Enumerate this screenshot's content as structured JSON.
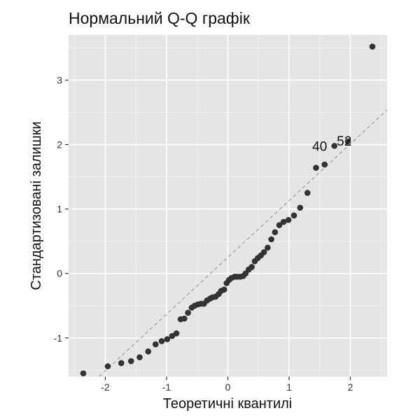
{
  "chart_data": {
    "type": "scatter",
    "title": "Нормальний Q-Q графік",
    "xlabel": "Теоретичні квантилі",
    "ylabel": "Стандартизовані залишки",
    "xlim": [
      -2.6,
      2.6
    ],
    "ylim": [
      -1.6,
      3.7
    ],
    "x_ticks": [
      -2,
      -1,
      0,
      1,
      2
    ],
    "y_ticks": [
      -1,
      0,
      1,
      2,
      3
    ],
    "grid": true,
    "reference_line": {
      "slope": 0.88,
      "intercept": 0.25,
      "style": "dashed"
    },
    "point_labels": [
      {
        "text": "40",
        "x": 1.5,
        "y": 1.98
      },
      {
        "text": "52",
        "x": 1.9,
        "y": 2.06
      }
    ],
    "points": [
      [
        -2.36,
        -1.55
      ],
      [
        -1.96,
        -1.44
      ],
      [
        -1.74,
        -1.39
      ],
      [
        -1.58,
        -1.36
      ],
      [
        -1.44,
        -1.3
      ],
      [
        -1.3,
        -1.21
      ],
      [
        -1.18,
        -1.1
      ],
      [
        -1.08,
        -1.05
      ],
      [
        -0.99,
        -1.02
      ],
      [
        -0.91,
        -0.97
      ],
      [
        -0.84,
        -0.93
      ],
      [
        -0.77,
        -0.71
      ],
      [
        -0.71,
        -0.7
      ],
      [
        -0.65,
        -0.61
      ],
      [
        -0.59,
        -0.53
      ],
      [
        -0.54,
        -0.5
      ],
      [
        -0.49,
        -0.48
      ],
      [
        -0.44,
        -0.47
      ],
      [
        -0.39,
        -0.47
      ],
      [
        -0.34,
        -0.42
      ],
      [
        -0.29,
        -0.39
      ],
      [
        -0.25,
        -0.37
      ],
      [
        -0.2,
        -0.36
      ],
      [
        -0.15,
        -0.32
      ],
      [
        -0.11,
        -0.27
      ],
      [
        -0.06,
        -0.25
      ],
      [
        -0.02,
        -0.15
      ],
      [
        0.02,
        -0.1
      ],
      [
        0.06,
        -0.07
      ],
      [
        0.11,
        -0.05
      ],
      [
        0.15,
        -0.05
      ],
      [
        0.2,
        -0.05
      ],
      [
        0.25,
        -0.04
      ],
      [
        0.29,
        0.0
      ],
      [
        0.34,
        0.06
      ],
      [
        0.39,
        0.1
      ],
      [
        0.44,
        0.19
      ],
      [
        0.49,
        0.24
      ],
      [
        0.54,
        0.28
      ],
      [
        0.59,
        0.33
      ],
      [
        0.65,
        0.4
      ],
      [
        0.71,
        0.53
      ],
      [
        0.77,
        0.64
      ],
      [
        0.84,
        0.75
      ],
      [
        0.91,
        0.8
      ],
      [
        0.99,
        0.83
      ],
      [
        1.08,
        0.9
      ],
      [
        1.18,
        1.02
      ],
      [
        1.3,
        1.25
      ],
      [
        1.44,
        1.64
      ],
      [
        1.58,
        1.69
      ],
      [
        1.74,
        1.98
      ],
      [
        1.96,
        2.05
      ],
      [
        2.36,
        3.52
      ]
    ]
  }
}
